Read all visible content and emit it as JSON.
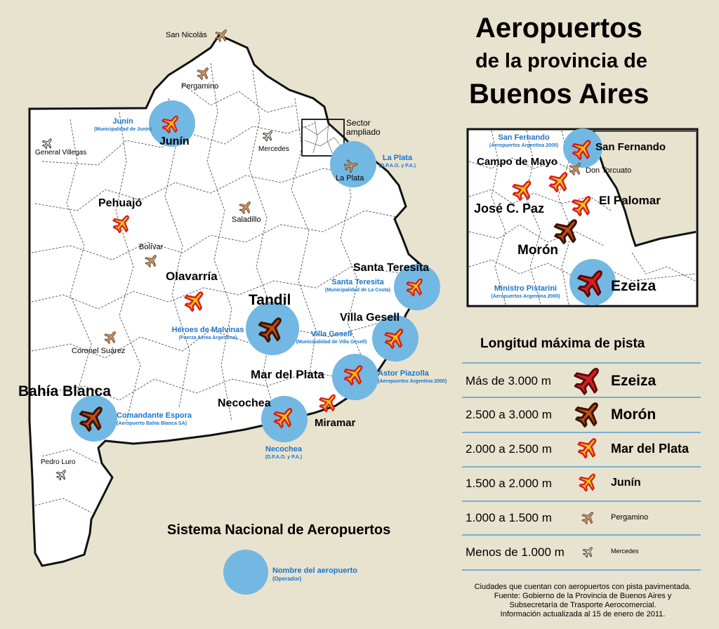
{
  "title": {
    "line1": "Aeropuertos",
    "line2": "de la provincia de",
    "line3": "Buenos Aires"
  },
  "colors": {
    "background": "#e8e3cf",
    "land": "#ffffff",
    "airport_circle": "#72b8e3",
    "label_blue": "#1a75c9",
    "rank1": "#d42020",
    "rank2": "#c24a12",
    "rank3": "#f2c414",
    "rank4": "#f2c414",
    "rank5": "#c8956a",
    "rank6": "#e8e3cf"
  },
  "map": {
    "sector_label_1": "Sector",
    "sector_label_2": "ampliado",
    "cities": [
      {
        "id": "san-nicolas",
        "label": "San Nicolás",
        "rank": 5
      },
      {
        "id": "pergamino",
        "label": "Pergamino",
        "rank": 5
      },
      {
        "id": "junin",
        "label": "Junín",
        "rank": 4,
        "snaa": true,
        "airport": "Junín",
        "operator": "(Municipalidad de Junín)"
      },
      {
        "id": "general-villegas",
        "label": "General Villegas",
        "rank": 6
      },
      {
        "id": "mercedes",
        "label": "Mercedes",
        "rank": 6
      },
      {
        "id": "la-plata",
        "label": "La Plata",
        "rank": 5,
        "snaa": true,
        "airport": "La Plata",
        "operator": "(D.P.A.O. y P.A.)"
      },
      {
        "id": "pehuajo",
        "label": "Pehuajó",
        "rank": 4
      },
      {
        "id": "saladillo",
        "label": "Saladillo",
        "rank": 5
      },
      {
        "id": "bolivar",
        "label": "Bolívar",
        "rank": 5
      },
      {
        "id": "olavarria",
        "label": "Olavarría",
        "rank": 3
      },
      {
        "id": "santa-teresita",
        "label": "Santa Teresita",
        "rank": 4,
        "snaa": true,
        "airport": "Santa Teresita",
        "operator": "(Municipalidad de La Costa)"
      },
      {
        "id": "tandil",
        "label": "Tandil",
        "rank": 2,
        "snaa": true,
        "airport": "Héroes de Malvinas",
        "operator": "(Fuerza Aérea Argentina)"
      },
      {
        "id": "villa-gesell",
        "label": "Villa Gesell",
        "rank": 3,
        "snaa": true,
        "airport": "Villa Gesell",
        "operator": "(Municipalidad de Villa Gesell)"
      },
      {
        "id": "coronel-suarez",
        "label": "Coronel Suárez",
        "rank": 5
      },
      {
        "id": "mar-del-plata",
        "label": "Mar del Plata",
        "rank": 3,
        "snaa": true,
        "airport": "Astor Piazolla",
        "operator": "(Aeropuertos Argentina 2000)"
      },
      {
        "id": "bahia-blanca",
        "label": "Bahía Blanca",
        "rank": 2,
        "snaa": true,
        "airport": "Comandante Espora",
        "operator": "(Aeropuerto Bahía Blanca SA)"
      },
      {
        "id": "necochea",
        "label": "Necochea",
        "rank": 3,
        "snaa": true,
        "airport": "Necochea",
        "operator": "(D.P.A.O. y P.A.)"
      },
      {
        "id": "miramar",
        "label": "Miramar",
        "rank": 4
      },
      {
        "id": "pedro-luro",
        "label": "Pedro Luro",
        "rank": 6
      }
    ]
  },
  "inset": {
    "cities": [
      {
        "id": "san-fernando",
        "label": "San Fernando",
        "rank": 3,
        "snaa": true,
        "airport": "San Fernando",
        "operator": "(Aeropuertos Argentina 2000)"
      },
      {
        "id": "campo-de-mayo",
        "label": "Campo de Mayo",
        "rank": 3
      },
      {
        "id": "don-torcuato",
        "label": "Don Torcuato",
        "rank": 5
      },
      {
        "id": "jose-c-paz",
        "label": "José C. Paz",
        "rank": 3
      },
      {
        "id": "el-palomar",
        "label": "El Palomar",
        "rank": 3
      },
      {
        "id": "moron",
        "label": "Morón",
        "rank": 2
      },
      {
        "id": "ezeiza",
        "label": "Ezeiza",
        "rank": 1,
        "snaa": true,
        "airport": "Ministro Pistarini",
        "operator": "(Aeropuertos Argentina 2000)"
      }
    ]
  },
  "legend": {
    "heading": "Longitud máxima de pista",
    "rows": [
      {
        "range": "Más de 3.000 m",
        "example": "Ezeiza",
        "rank": 1
      },
      {
        "range": "2.500 a 3.000 m",
        "example": "Morón",
        "rank": 2
      },
      {
        "range": "2.000 a 2.500 m",
        "example": "Mar del Plata",
        "rank": 3
      },
      {
        "range": "1.500 a 2.000 m",
        "example": "Junín",
        "rank": 4
      },
      {
        "range": "1.000 a 1.500 m",
        "example": "Pergamino",
        "rank": 5
      },
      {
        "range": "Menos de 1.000 m",
        "example": "Mercedes",
        "rank": 6
      }
    ]
  },
  "snaa_legend": {
    "heading": "Sistema Nacional de Aeropuertos",
    "name": "Nombre del aeropuerto",
    "operator": "(Operador)"
  },
  "footnote": {
    "line1": "Ciudades que cuentan con aeropuertos con pista pavimentada.",
    "line2": "Fuente: Gobierno de la Provincia de Buenos Aires y",
    "line3": "Subsecretaría de Trasporte Aerocomercial.",
    "line4": "Información actualizada al 15 de enero de 2011."
  }
}
